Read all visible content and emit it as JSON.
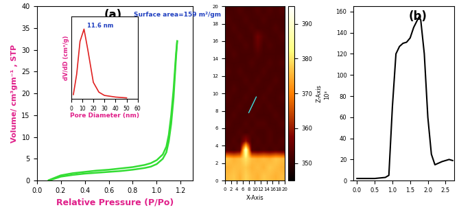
{
  "chart_data": [
    {
      "type": "line",
      "xlabel": "Relative Pressure (P/Po)",
      "ylabel": "Volume/ cm³gm⁻¹ , STP",
      "annotations": [
        "(a)",
        "Surface area=159 m²/gm"
      ],
      "x": [
        0.1,
        0.2,
        0.3,
        0.4,
        0.5,
        0.6,
        0.7,
        0.8,
        0.9,
        0.95,
        1.0,
        1.05,
        1.08,
        1.1,
        1.12,
        1.14,
        1.16,
        1.17
      ],
      "series": [
        {
          "color": "#33dd33",
          "values": [
            0,
            0.9,
            1.3,
            1.6,
            1.8,
            2.0,
            2.2,
            2.5,
            2.9,
            3.2,
            3.8,
            5.0,
            6.5,
            9,
            13,
            19,
            28,
            32
          ]
        },
        {
          "color": "#33dd33",
          "values": [
            0.1,
            1.2,
            1.7,
            2.0,
            2.3,
            2.5,
            2.8,
            3.1,
            3.6,
            4.0,
            4.7,
            6.0,
            7.8,
            10.5,
            15,
            21,
            29,
            32
          ]
        }
      ],
      "xlim": [
        0,
        1.3
      ],
      "xticks": [
        {
          "value": 0,
          "label": "0.0"
        },
        {
          "value": 0.2,
          "label": "0.2"
        },
        {
          "value": 0.4,
          "label": "0.4"
        },
        {
          "value": 0.6,
          "label": "0.6"
        },
        {
          "value": 0.8,
          "label": "0.8"
        },
        {
          "value": 1.0,
          "label": "1.0"
        },
        {
          "value": 1.2,
          "label": "1.2"
        }
      ],
      "ylim": [
        0,
        40
      ],
      "yticks": [
        0,
        5,
        10,
        15,
        20,
        25,
        30,
        35,
        40
      ]
    },
    {
      "type": "line",
      "xlabel": "Pore Diameter (nm)",
      "ylabel": "dV/dD (cm³/g)",
      "annotations": [
        "11.6 nm"
      ],
      "x": [
        2,
        5,
        8,
        11.6,
        15,
        20,
        25,
        30,
        40,
        50
      ],
      "values": [
        0.005,
        0.03,
        0.07,
        0.085,
        0.06,
        0.02,
        0.008,
        0.004,
        0.002,
        0.001
      ],
      "color": "#e02020",
      "xlim": [
        0,
        60
      ],
      "xticks": [
        0,
        10,
        20,
        30,
        40,
        50,
        60
      ],
      "ylim": [
        0,
        0.1
      ],
      "tick_labels": "x"
    },
    {
      "type": "heatmap",
      "xlabel": "X-Axis",
      "colorbar_label": "Z-Axis",
      "colorbar_unit": "10³",
      "xlim": [
        0,
        20
      ],
      "xticks": [
        0,
        2,
        4,
        6,
        8,
        10,
        12,
        14,
        16,
        18,
        20
      ],
      "ylim": [
        0,
        20
      ],
      "yticks": [
        0,
        2,
        4,
        6,
        8,
        10,
        12,
        14,
        16,
        18,
        20
      ],
      "colorbar_range": [
        345,
        395
      ],
      "colorbar_ticks": [
        350,
        360,
        370,
        380,
        390
      ],
      "profile_line": {
        "color": "#40e0e0",
        "x": [
          8,
          10.5
        ],
        "y": [
          7.8,
          9.6
        ]
      },
      "cells": [
        [
          376,
          377,
          375,
          378,
          376,
          375,
          377,
          376,
          375,
          376
        ],
        [
          375,
          376,
          376,
          377,
          375,
          376,
          375,
          377,
          376,
          375
        ],
        [
          377,
          375,
          376,
          380,
          376,
          375,
          376,
          375,
          377,
          376
        ],
        [
          353,
          352,
          354,
          390,
          353,
          352,
          353,
          352,
          353,
          352
        ],
        [
          352,
          353,
          352,
          360,
          352,
          353,
          352,
          353,
          352,
          353
        ],
        [
          352,
          352,
          353,
          352,
          353,
          352,
          352,
          353,
          352,
          352
        ],
        [
          353,
          352,
          352,
          353,
          352,
          353,
          353,
          352,
          352,
          353
        ],
        [
          352,
          353,
          352,
          352,
          353,
          352,
          352,
          352,
          353,
          352
        ],
        [
          352,
          352,
          353,
          352,
          352,
          353,
          352,
          353,
          352,
          352
        ],
        [
          353,
          352,
          352,
          353,
          352,
          352,
          353,
          352,
          352,
          353
        ],
        [
          352,
          353,
          352,
          352,
          353,
          352,
          352,
          353,
          352,
          352
        ],
        [
          352,
          352,
          352,
          353,
          352,
          353,
          352,
          352,
          353,
          352
        ],
        [
          353,
          352,
          353,
          352,
          352,
          352,
          353,
          352,
          352,
          352
        ],
        [
          352,
          352,
          352,
          352,
          353,
          352,
          352,
          353,
          352,
          353
        ],
        [
          352,
          353,
          352,
          352,
          352,
          353,
          352,
          352,
          352,
          352
        ],
        [
          353,
          352,
          352,
          353,
          352,
          355,
          352,
          353,
          352,
          352
        ],
        [
          352,
          352,
          353,
          352,
          352,
          356,
          353,
          352,
          352,
          353
        ],
        [
          352,
          353,
          352,
          352,
          353,
          352,
          352,
          352,
          353,
          352
        ],
        [
          353,
          352,
          352,
          353,
          352,
          352,
          353,
          352,
          352,
          352
        ],
        [
          352,
          352,
          353,
          352,
          352,
          353,
          352,
          353,
          352,
          353
        ]
      ]
    },
    {
      "type": "line",
      "annotations": [
        "(b)"
      ],
      "x": [
        0,
        0.5,
        0.8,
        0.9,
        1.0,
        1.1,
        1.2,
        1.3,
        1.4,
        1.5,
        1.6,
        1.75,
        1.8,
        1.9,
        2.0,
        2.1,
        2.2,
        2.4,
        2.6,
        2.7
      ],
      "values": [
        2,
        2,
        3,
        5,
        70,
        120,
        127,
        130,
        131,
        135,
        145,
        155,
        152,
        120,
        60,
        25,
        15,
        18,
        20,
        19
      ],
      "color": "#000000",
      "xlim": [
        -0.1,
        2.75
      ],
      "xticks": [
        {
          "value": 0,
          "label": "0.0"
        },
        {
          "value": 0.5,
          "label": "0.5"
        },
        {
          "value": 1.0,
          "label": "1.0"
        },
        {
          "value": 1.5,
          "label": "1.5"
        },
        {
          "value": 2.0,
          "label": "2.0"
        },
        {
          "value": 2.5,
          "label": "2.5"
        }
      ],
      "ylim": [
        0,
        165
      ],
      "yticks": [
        0,
        20,
        40,
        60,
        80,
        100,
        120,
        140,
        160
      ]
    }
  ]
}
